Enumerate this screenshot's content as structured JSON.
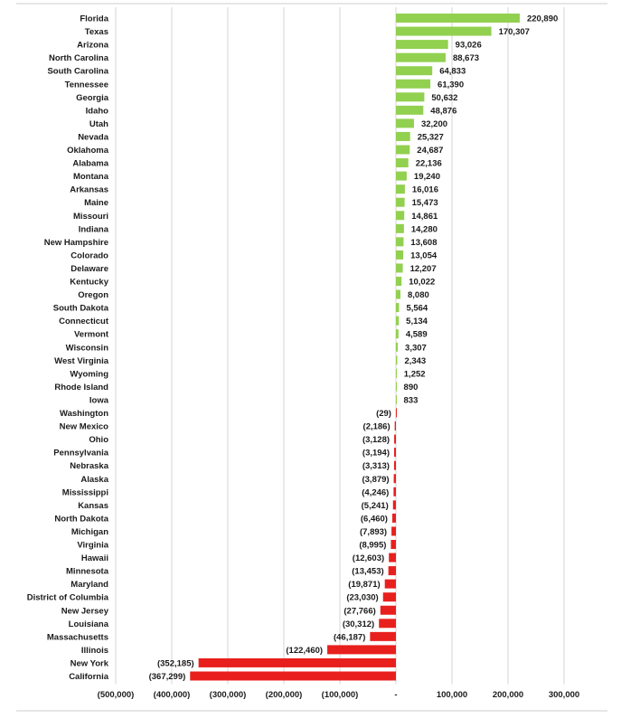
{
  "chart_data": {
    "type": "bar",
    "orientation": "horizontal",
    "title": "",
    "xlabel": "",
    "ylabel": "",
    "xlim": [
      -500000,
      300000
    ],
    "x_ticks": [
      -500000,
      -400000,
      -300000,
      -200000,
      -100000,
      0,
      100000,
      200000,
      300000
    ],
    "x_tick_labels": [
      "(500,000)",
      "(400,000)",
      "(300,000)",
      "(200,000)",
      "(100,000)",
      "-",
      "100,000",
      "200,000",
      "300,000"
    ],
    "grid": true,
    "legend": "none",
    "positive_color": "#92d050",
    "negative_color": "#e8201d",
    "categories": [
      "Florida",
      "Texas",
      "Arizona",
      "North Carolina",
      "South Carolina",
      "Tennessee",
      "Georgia",
      "Idaho",
      "Utah",
      "Nevada",
      "Oklahoma",
      "Alabama",
      "Montana",
      "Arkansas",
      "Maine",
      "Missouri",
      "Indiana",
      "New Hampshire",
      "Colorado",
      "Delaware",
      "Kentucky",
      "Oregon",
      "South Dakota",
      "Connecticut",
      "Vermont",
      "Wisconsin",
      "West Virginia",
      "Wyoming",
      "Rhode Island",
      "Iowa",
      "Washington",
      "New Mexico",
      "Ohio",
      "Pennsylvania",
      "Nebraska",
      "Alaska",
      "Mississippi",
      "Kansas",
      "North Dakota",
      "Michigan",
      "Virginia",
      "Hawaii",
      "Minnesota",
      "Maryland",
      "District of Columbia",
      "New Jersey",
      "Louisiana",
      "Massachusetts",
      "Illinois",
      "New York",
      "California"
    ],
    "values": [
      220890,
      170307,
      93026,
      88673,
      64833,
      61390,
      50632,
      48876,
      32200,
      25327,
      24687,
      22136,
      19240,
      16016,
      15473,
      14861,
      14280,
      13608,
      13054,
      12207,
      10022,
      8080,
      5564,
      5134,
      4589,
      3307,
      2343,
      1252,
      890,
      833,
      -29,
      -2186,
      -3128,
      -3194,
      -3313,
      -3879,
      -4246,
      -5241,
      -6460,
      -7893,
      -8995,
      -12603,
      -13453,
      -19871,
      -23030,
      -27766,
      -30312,
      -46187,
      -122460,
      -352185,
      -367299
    ],
    "value_labels": [
      "220,890",
      "170,307",
      "93,026",
      "88,673",
      "64,833",
      "61,390",
      "50,632",
      "48,876",
      "32,200",
      "25,327",
      "24,687",
      "22,136",
      "19,240",
      "16,016",
      "15,473",
      "14,861",
      "14,280",
      "13,608",
      "13,054",
      "12,207",
      "10,022",
      "8,080",
      "5,564",
      "5,134",
      "4,589",
      "3,307",
      "2,343",
      "1,252",
      "890",
      "833",
      "(29)",
      "(2,186)",
      "(3,128)",
      "(3,194)",
      "(3,313)",
      "(3,879)",
      "(4,246)",
      "(5,241)",
      "(6,460)",
      "(7,893)",
      "(8,995)",
      "(12,603)",
      "(13,453)",
      "(19,871)",
      "(23,030)",
      "(27,766)",
      "(30,312)",
      "(46,187)",
      "(122,460)",
      "(352,185)",
      "(367,299)"
    ]
  }
}
